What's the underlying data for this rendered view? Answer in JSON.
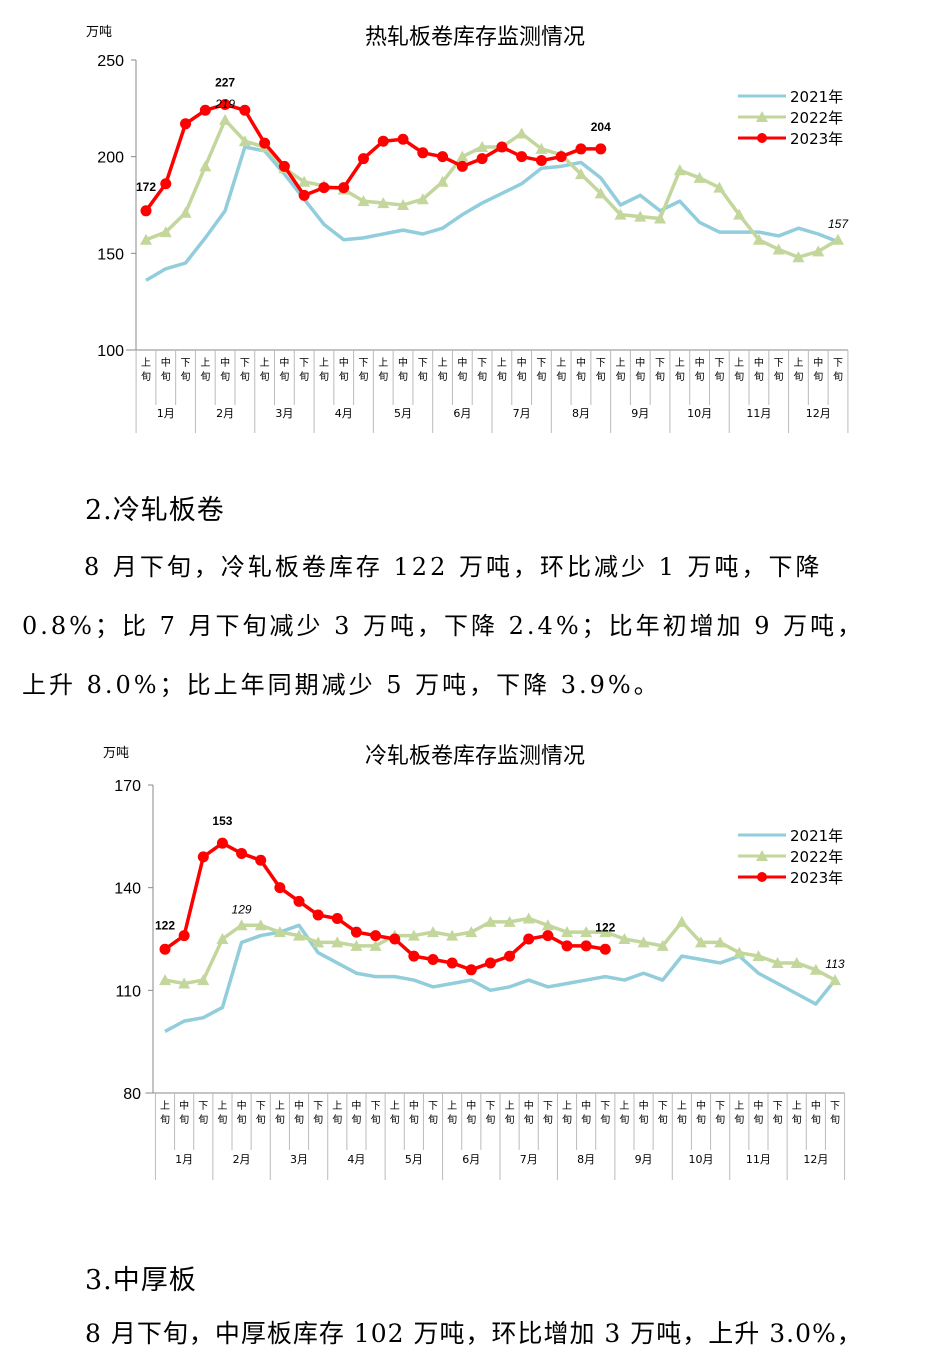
{
  "chart_data": [
    {
      "type": "line",
      "title": "热轧板卷库存监测情况",
      "ylabel": "万吨",
      "xlabel": "",
      "ylim": [
        100,
        250
      ],
      "yticks": [
        100,
        150,
        200,
        250
      ],
      "grid": false,
      "legend_position": "upper-right",
      "months": [
        "1月",
        "2月",
        "3月",
        "4月",
        "5月",
        "6月",
        "7月",
        "8月",
        "9月",
        "10月",
        "11月",
        "12月"
      ],
      "periods": [
        "上旬",
        "中旬",
        "下旬"
      ],
      "series": [
        {
          "name": "2021年",
          "color": "#92CDDC",
          "marker": "none",
          "values": [
            136,
            142,
            145,
            158,
            172,
            205,
            203,
            191,
            178,
            165,
            157,
            158,
            160,
            162,
            160,
            163,
            170,
            176,
            181,
            186,
            194,
            195,
            197,
            189,
            175,
            180,
            172,
            177,
            166,
            161,
            161,
            161,
            159,
            163,
            160,
            156
          ]
        },
        {
          "name": "2022年",
          "color": "#C3D69B",
          "marker": "triangle",
          "values": [
            157,
            161,
            171,
            195,
            219,
            208,
            205,
            194,
            187,
            185,
            183,
            177,
            176,
            175,
            178,
            187,
            200,
            205,
            205,
            212,
            204,
            201,
            191,
            181,
            170,
            169,
            168,
            193,
            189,
            184,
            170,
            157,
            152,
            148,
            151,
            157
          ]
        },
        {
          "name": "2023年",
          "color": "#FF0000",
          "marker": "circle",
          "values": [
            172,
            186,
            217,
            224,
            227,
            224,
            207,
            195,
            180,
            184,
            184,
            199,
            208,
            209,
            202,
            200,
            195,
            199,
            205,
            200,
            198,
            200,
            204,
            204
          ]
        }
      ],
      "annotations": [
        {
          "series": "2023年",
          "index": 0,
          "text": "172",
          "style": "bold"
        },
        {
          "series": "2023年",
          "index": 4,
          "text": "227",
          "style": "bold"
        },
        {
          "series": "2022年",
          "index": 4,
          "text": "219",
          "style": "italic"
        },
        {
          "series": "2023年",
          "index": 23,
          "text": "204",
          "style": "bold"
        },
        {
          "series": "2022年",
          "index": 35,
          "text": "157",
          "style": "italic"
        }
      ]
    },
    {
      "type": "line",
      "title": "冷轧板卷库存监测情况",
      "ylabel": "万吨",
      "xlabel": "",
      "ylim": [
        80,
        170
      ],
      "yticks": [
        80,
        110,
        140,
        170
      ],
      "grid": false,
      "legend_position": "upper-right",
      "months": [
        "1月",
        "2月",
        "3月",
        "4月",
        "5月",
        "6月",
        "7月",
        "8月",
        "9月",
        "10月",
        "11月",
        "12月"
      ],
      "periods": [
        "上旬",
        "中旬",
        "下旬"
      ],
      "series": [
        {
          "name": "2021年",
          "color": "#92CDDC",
          "marker": "none",
          "values": [
            98,
            101,
            102,
            105,
            124,
            126,
            127,
            129,
            121,
            118,
            115,
            114,
            114,
            113,
            111,
            112,
            113,
            110,
            111,
            113,
            111,
            112,
            113,
            114,
            113,
            115,
            113,
            120,
            119,
            118,
            120,
            115,
            112,
            109,
            106,
            113
          ]
        },
        {
          "name": "2022年",
          "color": "#C3D69B",
          "marker": "triangle",
          "values": [
            113,
            112,
            113,
            125,
            129,
            129,
            127,
            126,
            124,
            124,
            123,
            123,
            126,
            126,
            127,
            126,
            127,
            130,
            130,
            131,
            129,
            127,
            127,
            127,
            125,
            124,
            123,
            130,
            124,
            124,
            121,
            120,
            118,
            118,
            116,
            113
          ]
        },
        {
          "name": "2023年",
          "color": "#FF0000",
          "marker": "circle",
          "values": [
            122,
            126,
            149,
            153,
            150,
            148,
            140,
            136,
            132,
            131,
            127,
            126,
            125,
            120,
            119,
            118,
            116,
            118,
            120,
            125,
            126,
            123,
            123,
            122
          ]
        }
      ],
      "annotations": [
        {
          "series": "2023年",
          "index": 0,
          "text": "122",
          "style": "bold"
        },
        {
          "series": "2023年",
          "index": 3,
          "text": "153",
          "style": "bold"
        },
        {
          "series": "2022年",
          "index": 4,
          "text": "129",
          "style": "italic"
        },
        {
          "series": "2023年",
          "index": 23,
          "text": "122",
          "style": "bold"
        },
        {
          "series": "2022年",
          "index": 35,
          "text": "113",
          "style": "italic"
        }
      ]
    }
  ],
  "section2": {
    "heading": "2.冷轧板卷",
    "paragraph_line1": "8 月下旬，冷轧板卷库存 122 万吨，环比减少 1 万吨，下降",
    "paragraph_line2": "0.8%；比 7 月下旬减少 3 万吨，下降 2.4%；比年初增加 9 万吨，",
    "paragraph_line3": "上升 8.0%；比上年同期减少 5 万吨，下降 3.9%。"
  },
  "section3": {
    "heading": "3.中厚板",
    "paragraph_line1": "8 月下旬，中厚板库存 102 万吨，环比增加 3 万吨，上升 3.0%，"
  }
}
